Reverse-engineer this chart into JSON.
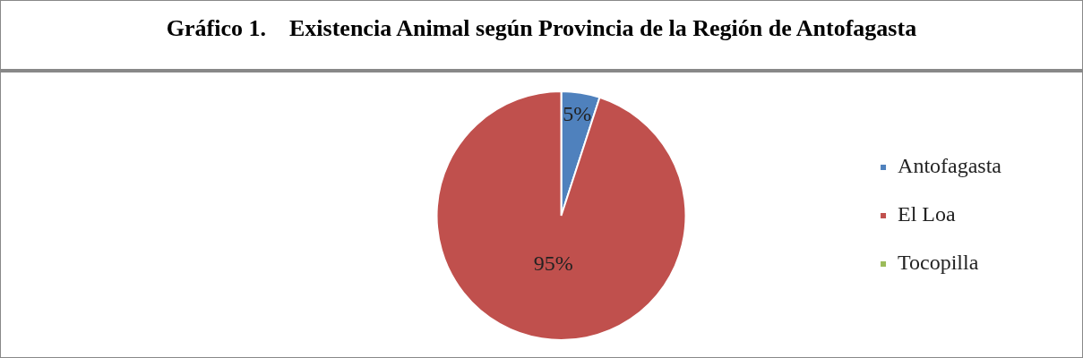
{
  "chart_data": {
    "type": "pie",
    "title": "Gráfico 1.    Existencia Animal según Provincia de la Región de Antofagasta",
    "categories": [
      "Antofagasta",
      "El Loa",
      "Tocopilla"
    ],
    "values": [
      5,
      95,
      0
    ],
    "colors": [
      "#4f81bd",
      "#c0504d",
      "#9bbb59"
    ],
    "value_labels": [
      "5%",
      "95%",
      null
    ],
    "legend": "right"
  }
}
